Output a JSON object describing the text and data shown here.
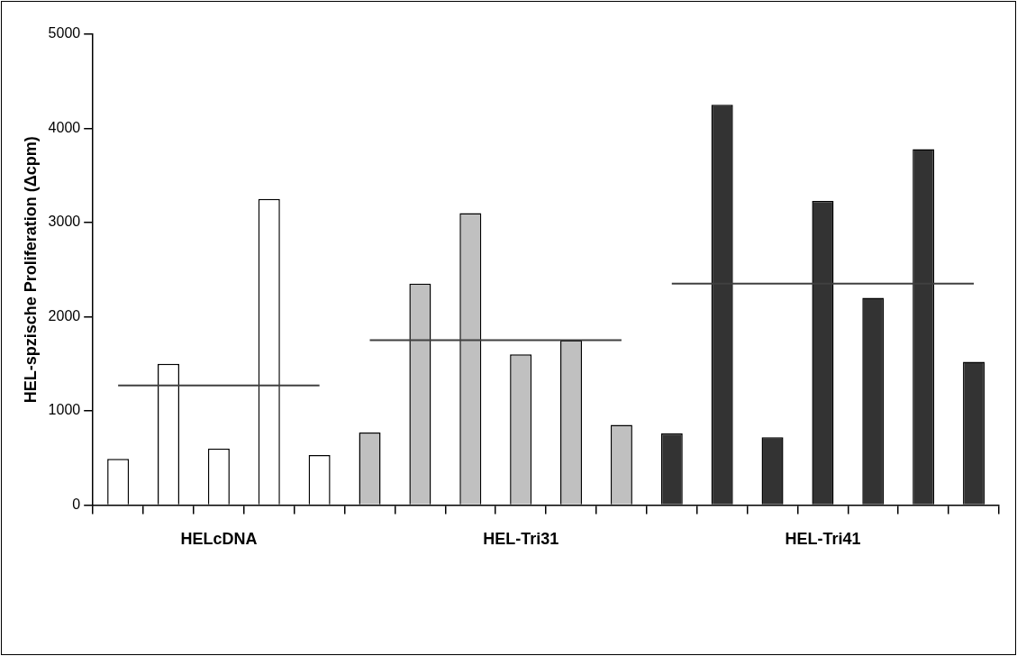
{
  "chart_data": {
    "type": "bar",
    "ylabel": "HEL-spzische Proliferation (Δcpm)",
    "categories": [
      null,
      null,
      "HELcDNA",
      null,
      null,
      null,
      null,
      null,
      "HEL-Tri31",
      null,
      null,
      null,
      null,
      null,
      "HEL-Tri41",
      null,
      null,
      null
    ],
    "series": [
      {
        "colors": [
          "#ffffff",
          "#ffffff",
          "#ffffff",
          "#ffffff",
          "#ffffff",
          "#c0c0c0",
          "#c0c0c0",
          "#c0c0c0",
          "#c0c0c0",
          "#c0c0c0",
          "#c0c0c0",
          "#333333",
          "#333333",
          "#333333",
          "#333333",
          "#333333",
          "#333333",
          "#333333"
        ],
        "values": [
          490,
          1500,
          600,
          3250,
          530,
          770,
          2350,
          3100,
          1600,
          1750,
          850,
          760,
          4250,
          720,
          3230,
          2200,
          3780,
          1520
        ]
      },
      {
        "type": "line",
        "color": "#404040",
        "values": [
          1270,
          1270,
          1270,
          1270,
          1270,
          null,
          null,
          null,
          null,
          null,
          null,
          null,
          null,
          null,
          null,
          null,
          null,
          null
        ]
      },
      {
        "type": "line",
        "color": "#404040",
        "values": [
          null,
          null,
          null,
          null,
          null,
          1750,
          1750,
          1750,
          1750,
          1750,
          1750,
          null,
          null,
          null,
          null,
          null,
          null,
          null
        ]
      },
      {
        "type": "line",
        "color": "#404040",
        "values": [
          null,
          null,
          null,
          null,
          null,
          null,
          null,
          null,
          null,
          null,
          null,
          2350,
          2350,
          2350,
          2350,
          2350,
          2350,
          2350
        ]
      }
    ],
    "ylim": [
      0,
      5000
    ],
    "yticks": [
      0,
      1000,
      2000,
      3000,
      4000,
      5000
    ],
    "grid": false,
    "legend": false
  }
}
